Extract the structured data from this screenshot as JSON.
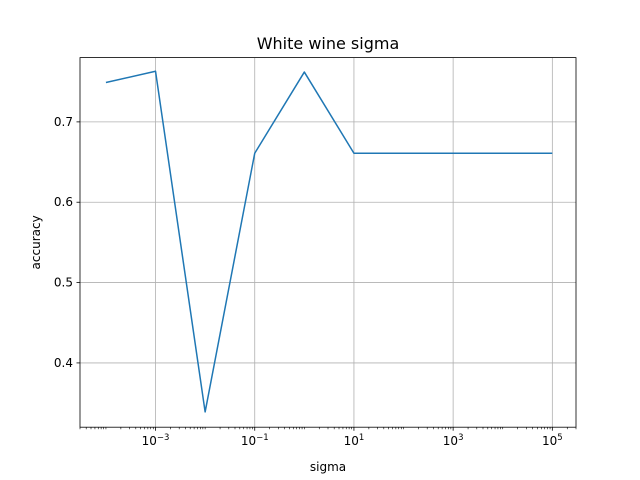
{
  "chart_data": {
    "type": "line",
    "title": "White wine sigma",
    "xlabel": "sigma",
    "ylabel": "accuracy",
    "xscale": "log",
    "grid": true,
    "xlim": [
      3e-05,
      300000
    ],
    "ylim": [
      0.32,
      0.78
    ],
    "x_ticks": [
      {
        "value": 0.001,
        "base": "10",
        "exp": "−3"
      },
      {
        "value": 0.1,
        "base": "10",
        "exp": "−1"
      },
      {
        "value": 10,
        "base": "10",
        "exp": "1"
      },
      {
        "value": 1000,
        "base": "10",
        "exp": "3"
      },
      {
        "value": 100000,
        "base": "10",
        "exp": "5"
      }
    ],
    "y_ticks": [
      {
        "value": 0.4,
        "label": "0.4"
      },
      {
        "value": 0.5,
        "label": "0.5"
      },
      {
        "value": 0.6,
        "label": "0.6"
      },
      {
        "value": 0.7,
        "label": "0.7"
      }
    ],
    "series": [
      {
        "color": "#1f77b4",
        "x": [
          0.0001,
          0.001,
          0.01,
          0.1,
          1,
          10,
          100,
          1000,
          10000,
          100000
        ],
        "y": [
          0.749,
          0.763,
          0.339,
          0.661,
          0.762,
          0.661,
          0.661,
          0.661,
          0.661,
          0.661
        ]
      }
    ]
  }
}
